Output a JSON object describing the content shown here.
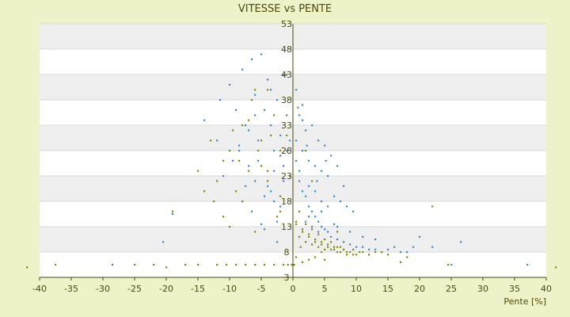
{
  "chart_data": {
    "type": "scatter",
    "title": "VITESSE vs PENTE",
    "xlabel": "Pente [%]",
    "ylabel": "",
    "xlim": [
      -40,
      40
    ],
    "ylim": [
      3,
      53
    ],
    "x_ticks": [
      "-40",
      "-35",
      "-30",
      "-25",
      "-20",
      "-15",
      "-10",
      "-5",
      "0",
      "5",
      "10",
      "15",
      "20",
      "25",
      "30",
      "35",
      "40"
    ],
    "y_ticks": [
      "3",
      "8",
      "13",
      "18",
      "23",
      "28",
      "33",
      "38",
      "43",
      "48",
      "53"
    ],
    "grid": true,
    "legend": "none",
    "colors": {
      "background": "#eef2c8",
      "plot_band_light": "#ffffff",
      "plot_band_dark": "#efefef",
      "series_1": "#2e8fd8",
      "series_2": "#8a8a00"
    },
    "series": [
      {
        "color": "#2e8fd8",
        "x": [
          -28.5,
          -19.0,
          -20.5,
          -14.0,
          -12.0,
          -11.5,
          -10.0,
          -9.0,
          -8.5,
          -8.0,
          -7.5,
          -7.0,
          -6.5,
          -6.0,
          -5.5,
          -5.0,
          -4.5,
          -4.0,
          -3.5,
          -3.0,
          -2.5,
          -2.0,
          -1.5,
          -1.0,
          -0.5,
          -6.0,
          -4.5,
          -3.0,
          -2.0,
          -8.0,
          -6.5,
          -5.0,
          -3.5,
          -2.5,
          -1.5,
          -9.5,
          -7.0,
          -4.0,
          -2.0,
          -1.0,
          -11.0,
          -8.5,
          -6.0,
          -3.5,
          -1.5,
          -5.5,
          -3.0,
          -7.5,
          -4.5,
          -2.5,
          0.5,
          1.0,
          1.5,
          2.0,
          2.5,
          3.0,
          3.5,
          4.0,
          4.5,
          5.0,
          5.5,
          6.0,
          7.0,
          8.0,
          9.0,
          10.0,
          11.0,
          12.0,
          13.0,
          14.0,
          15.0,
          16.0,
          17.0,
          18.0,
          19.0,
          20.0,
          0.5,
          1.5,
          2.5,
          3.5,
          4.5,
          5.5,
          6.5,
          7.5,
          8.5,
          9.5,
          1.0,
          2.0,
          3.0,
          4.0,
          5.0,
          6.0,
          7.0,
          8.0,
          0.5,
          1.5,
          2.5,
          3.5,
          4.5,
          5.5,
          2.0,
          3.0,
          4.0,
          1.0,
          2.5,
          4.5,
          7.0,
          9.0,
          11.0,
          13.0,
          22.0,
          25.0,
          26.5,
          37.0,
          6.5,
          1.5,
          0.8,
          2.2,
          3.8,
          5.2
        ],
        "y": [
          5.5,
          15.5,
          10.0,
          34.0,
          30.0,
          38.0,
          41.0,
          36.0,
          28.0,
          44.0,
          33.0,
          25.0,
          46.0,
          39.0,
          30.0,
          47.0,
          36.0,
          42.0,
          33.0,
          28.0,
          38.0,
          31.0,
          25.0,
          35.0,
          30.0,
          22.0,
          19.0,
          24.0,
          27.0,
          18.0,
          16.0,
          13.5,
          20.0,
          14.0,
          22.0,
          26.0,
          32.0,
          21.0,
          17.0,
          28.0,
          23.0,
          29.0,
          35.0,
          40.0,
          43.0,
          26.0,
          18.0,
          21.0,
          12.5,
          10.0,
          26.0,
          22.0,
          20.0,
          19.0,
          17.0,
          16.0,
          15.0,
          14.0,
          13.0,
          12.5,
          12.0,
          11.0,
          10.5,
          10.0,
          9.5,
          9.0,
          9.0,
          8.5,
          8.5,
          8.0,
          8.5,
          9.0,
          8.0,
          8.0,
          9.0,
          11.0,
          30.0,
          28.0,
          26.0,
          25.0,
          24.0,
          23.0,
          19.0,
          18.0,
          17.0,
          16.0,
          35.0,
          32.0,
          33.0,
          30.0,
          29.0,
          27.0,
          25.0,
          21.0,
          40.0,
          37.0,
          21.0,
          20.0,
          18.0,
          17.0,
          14.0,
          13.0,
          12.0,
          24.0,
          15.0,
          16.0,
          13.0,
          12.0,
          11.0,
          10.5,
          9.0,
          5.5,
          10.0,
          5.5,
          13.5,
          34.0,
          36.5,
          29.0,
          22.0,
          26.0
        ]
      },
      {
        "color": "#8a8a00",
        "x": [
          -42.0,
          -37.5,
          -25.0,
          -22.0,
          -20.0,
          -17.0,
          -15.0,
          -12.0,
          -10.5,
          -9.0,
          -7.5,
          -6.0,
          -4.5,
          -3.0,
          -1.5,
          -19.0,
          -14.0,
          -13.0,
          -12.0,
          -11.0,
          -10.0,
          -9.0,
          -8.0,
          -7.0,
          -6.0,
          -5.0,
          -4.0,
          -3.0,
          -2.0,
          -1.0,
          -15.0,
          -12.5,
          -11.0,
          -9.5,
          -8.0,
          -6.5,
          -5.0,
          -3.5,
          -2.0,
          -0.5,
          -10.0,
          -8.5,
          -7.0,
          -5.5,
          -4.0,
          -2.5,
          -1.0,
          -6.0,
          -4.0,
          -2.0,
          0.5,
          1.0,
          1.5,
          2.0,
          2.5,
          3.0,
          3.5,
          4.0,
          4.5,
          5.0,
          5.5,
          6.0,
          6.5,
          7.0,
          7.5,
          8.0,
          8.5,
          9.0,
          9.5,
          10.0,
          10.5,
          11.0,
          12.0,
          13.0,
          14.0,
          15.0,
          17.0,
          18.0,
          0.5,
          1.5,
          2.5,
          3.5,
          4.5,
          5.5,
          6.5,
          7.5,
          8.5,
          9.5,
          1.0,
          2.0,
          3.0,
          4.0,
          5.0,
          6.0,
          7.0,
          8.0,
          0.5,
          1.5,
          2.5,
          3.5,
          4.5,
          22.0,
          24.5,
          41.5,
          5.0,
          3.0,
          2.0,
          7.0,
          0.2,
          -0.2,
          -0.8,
          1.2
        ],
        "y": [
          5.0,
          5.5,
          5.5,
          5.5,
          5.0,
          5.5,
          5.5,
          5.5,
          5.5,
          5.5,
          5.5,
          5.5,
          5.5,
          5.5,
          5.5,
          16.0,
          20.0,
          30.0,
          22.0,
          15.0,
          28.0,
          20.0,
          33.0,
          24.0,
          40.0,
          30.0,
          22.0,
          35.0,
          28.0,
          43.0,
          24.0,
          18.0,
          26.0,
          32.0,
          18.0,
          38.0,
          25.0,
          31.0,
          19.0,
          23.0,
          13.0,
          26.0,
          34.0,
          28.0,
          40.0,
          15.0,
          31.0,
          12.0,
          24.0,
          16.0,
          13.5,
          11.0,
          12.5,
          10.0,
          11.5,
          9.5,
          10.5,
          9.0,
          10.0,
          8.5,
          9.5,
          8.5,
          9.0,
          8.0,
          9.0,
          8.5,
          8.0,
          8.0,
          8.5,
          7.5,
          8.0,
          8.0,
          7.5,
          8.0,
          8.0,
          7.5,
          6.0,
          7.0,
          14.0,
          12.0,
          11.0,
          10.0,
          9.5,
          9.0,
          8.5,
          8.0,
          7.5,
          7.5,
          16.0,
          13.5,
          12.5,
          11.5,
          10.5,
          10.0,
          9.0,
          8.5,
          7.0,
          6.0,
          6.5,
          7.0,
          8.0,
          17.0,
          5.5,
          5.0,
          6.5,
          22.0,
          28.0,
          12.0,
          5.5,
          5.5,
          5.5,
          9.0
        ]
      }
    ]
  }
}
